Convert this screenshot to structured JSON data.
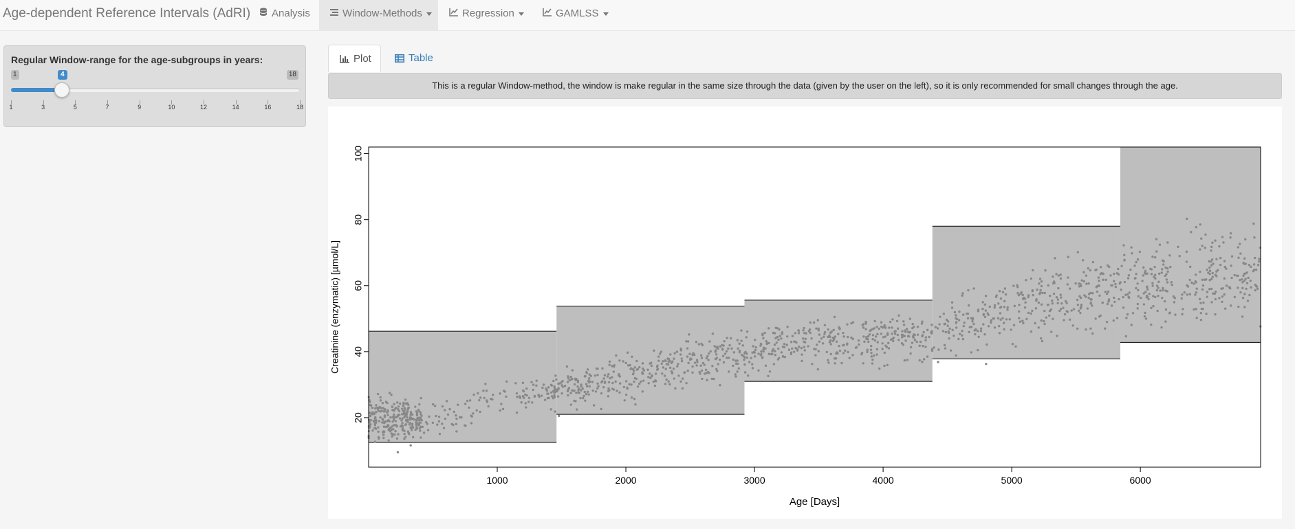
{
  "navbar": {
    "brand": "Age-dependent Reference Intervals (AdRI)",
    "items": [
      {
        "label": "Analysis",
        "icon": "database-icon"
      },
      {
        "label": "Window-Methods",
        "icon": "list-icon"
      },
      {
        "label": "Regression",
        "icon": "line-chart-icon"
      },
      {
        "label": "GAMLSS",
        "icon": "line-chart-icon"
      }
    ]
  },
  "sidebar": {
    "slider_label": "Regular Window-range for the age-subgroups in years:",
    "min": 1,
    "max": 18,
    "value": 4,
    "min_label": "1",
    "max_label": "18",
    "value_label": "4",
    "ticks": [
      "1",
      "3",
      "5",
      "7",
      "9",
      "10",
      "12",
      "14",
      "16",
      "18"
    ],
    "accent": "#428bca"
  },
  "tabs": [
    {
      "label": "Plot",
      "icon": "bar-chart-icon"
    },
    {
      "label": "Table",
      "icon": "table-icon"
    }
  ],
  "info_text": "This is a regular Window-method, the window is make regular in the same size through the data (given by the user on the left), so it is only recommended for small changes through the age.",
  "chart_data": {
    "type": "scatter",
    "xlabel": "Age [Days]",
    "ylabel": "Creatinine (enzymatic) [µmol/L]",
    "xlim": [
      0,
      6935
    ],
    "ylim": [
      5,
      102
    ],
    "xticks": [
      "1000",
      "2000",
      "3000",
      "4000",
      "5000",
      "6000"
    ],
    "yticks": [
      "20",
      "40",
      "60",
      "80",
      "100"
    ],
    "grid": false,
    "point_color": "#888888",
    "band_color": "#bebebe",
    "windows": [
      {
        "x0": 0,
        "x1": 1461,
        "lower": 12.5,
        "upper": 46.2
      },
      {
        "x0": 1461,
        "x1": 2922,
        "lower": 21.0,
        "upper": 53.8
      },
      {
        "x0": 2922,
        "x1": 4383,
        "lower": 31.0,
        "upper": 55.6
      },
      {
        "x0": 4383,
        "x1": 5844,
        "lower": 37.8,
        "upper": 78.0
      },
      {
        "x0": 5844,
        "x1": 6935,
        "lower": 42.8,
        "upper": 102.0
      }
    ],
    "trend": [
      {
        "x": 0,
        "y": 20,
        "sd": 6
      },
      {
        "x": 500,
        "y": 19,
        "sd": 5
      },
      {
        "x": 1000,
        "y": 25,
        "sd": 4.5
      },
      {
        "x": 1461,
        "y": 28,
        "sd": 5
      },
      {
        "x": 2000,
        "y": 33,
        "sd": 6
      },
      {
        "x": 2922,
        "y": 40,
        "sd": 5.5
      },
      {
        "x": 3500,
        "y": 43,
        "sd": 5.5
      },
      {
        "x": 4383,
        "y": 45,
        "sd": 6.5
      },
      {
        "x": 5000,
        "y": 53,
        "sd": 8
      },
      {
        "x": 5844,
        "y": 60,
        "sd": 10
      },
      {
        "x": 6935,
        "y": 65,
        "sd": 13
      }
    ]
  }
}
